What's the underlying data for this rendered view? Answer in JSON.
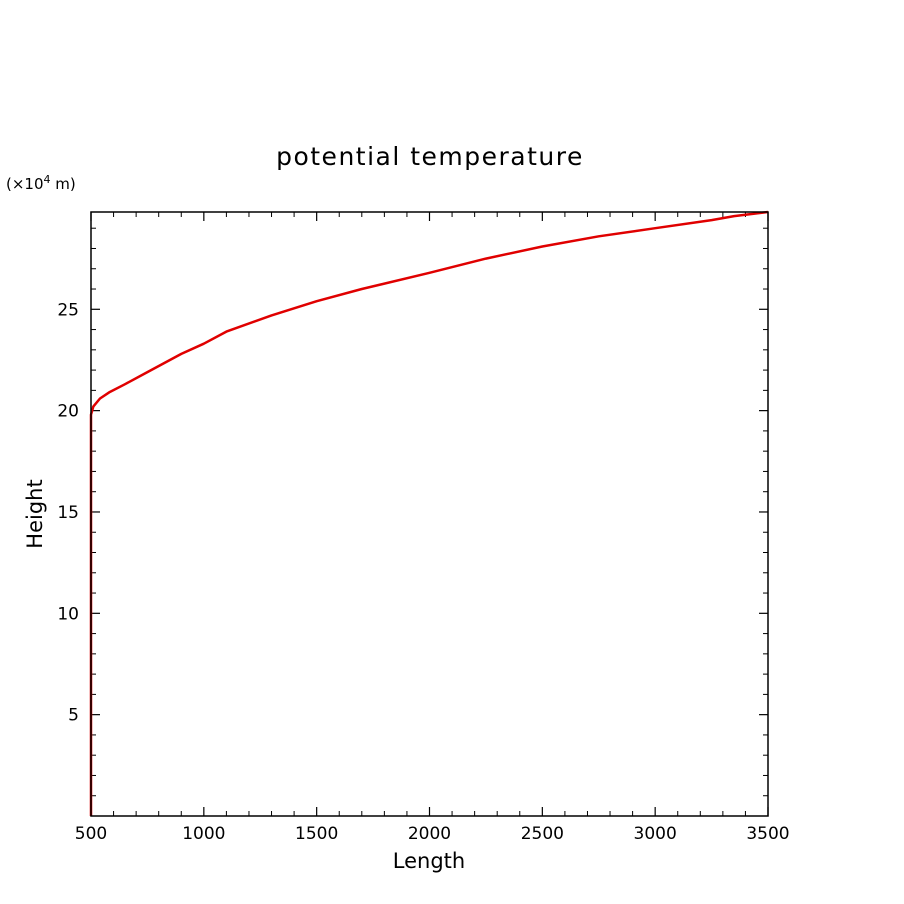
{
  "chart_data": {
    "type": "line",
    "title": "potential temperature",
    "xlabel": "Length",
    "ylabel": "Height",
    "y_unit_prefix": "(×10",
    "y_unit_exponent": "4",
    "y_unit_suffix": " m)",
    "xlim": [
      500,
      3500
    ],
    "ylim": [
      0,
      29.8
    ],
    "x_ticks": [
      500,
      1000,
      1500,
      2000,
      2500,
      3000,
      3500
    ],
    "x_tick_labels": [
      "500",
      "1000",
      "1500",
      "2000",
      "2500",
      "3000",
      "3500"
    ],
    "y_ticks": [
      5,
      10,
      15,
      20,
      25
    ],
    "y_tick_labels": [
      "5",
      "10",
      "15",
      "20",
      "25"
    ],
    "grid": false,
    "series": [
      {
        "color": "#e00000",
        "x": [
          500,
          500,
          500,
          500,
          500,
          500,
          510,
          540,
          580,
          650,
          750,
          900,
          1000,
          1100,
          1300,
          1500,
          1700,
          2000,
          2250,
          2500,
          2750,
          3000,
          3250,
          3350,
          3500
        ],
        "y": [
          0,
          5,
          10,
          15,
          19.5,
          19.8,
          20.2,
          20.6,
          20.9,
          21.3,
          21.9,
          22.8,
          23.3,
          23.9,
          24.7,
          25.4,
          26.0,
          26.8,
          27.5,
          28.1,
          28.6,
          29.0,
          29.4,
          29.6,
          29.8
        ]
      }
    ]
  }
}
